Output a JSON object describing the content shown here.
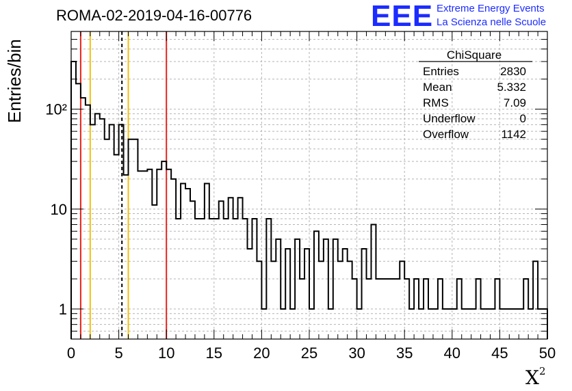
{
  "header": {
    "title": "ROMA-02-2019-04-16-00776",
    "logo_mark": "EEE",
    "logo_line1": "Extreme Energy Events",
    "logo_line2": "La Scienza nelle Scuole"
  },
  "stats_box": {
    "title": "ChiSquare",
    "rows": [
      {
        "label": "Entries",
        "value": "2830"
      },
      {
        "label": "Mean",
        "value": "5.332"
      },
      {
        "label": "RMS",
        "value": "7.09"
      },
      {
        "label": "Underflow",
        "value": "0"
      },
      {
        "label": "Overflow",
        "value": "1142"
      }
    ]
  },
  "colors": {
    "histogram": "#000000",
    "red_line": "#e8221a",
    "yellow_line": "#f2c00d",
    "dashed_line": "#000000",
    "grid": "#b3b3b3",
    "logo": "#1c2bff"
  },
  "chart_data": {
    "type": "bar",
    "title": "ROMA-02-2019-04-16-00776",
    "xlabel": "χ²",
    "ylabel": "Entries/bin",
    "xlim": [
      0,
      50
    ],
    "ylim": [
      0.5,
      600
    ],
    "log_y": true,
    "grid": true,
    "bin_width": 0.5,
    "x_ticks": [
      "0",
      "5",
      "10",
      "15",
      "20",
      "25",
      "30",
      "35",
      "40",
      "45",
      "50"
    ],
    "y_ticks": [
      "1",
      "10",
      "10²"
    ],
    "values": [
      300,
      180,
      130,
      110,
      70,
      90,
      80,
      50,
      70,
      35,
      70,
      22,
      50,
      50,
      24,
      24,
      25,
      11,
      25,
      30,
      25,
      20,
      8,
      18,
      16,
      12,
      8,
      8,
      18,
      8,
      8,
      12,
      8,
      13,
      8,
      13,
      8,
      4,
      8,
      3,
      1,
      8,
      3,
      5,
      1,
      4,
      1,
      5,
      2,
      4,
      1,
      6,
      3,
      5,
      1,
      5,
      3,
      4,
      3,
      2,
      1,
      4,
      2,
      7,
      2,
      2,
      2,
      2,
      2,
      3,
      2,
      1,
      2,
      1,
      2,
      1,
      1,
      2,
      1,
      1,
      1,
      2,
      1,
      1,
      1,
      2,
      1,
      1,
      1,
      2,
      1,
      1,
      1,
      1,
      1,
      2,
      1,
      3,
      1,
      1
    ],
    "vertical_lines": [
      {
        "x": 1,
        "color": "red",
        "style": "solid"
      },
      {
        "x": 2,
        "color": "yellow",
        "style": "solid"
      },
      {
        "x": 5.332,
        "color": "black",
        "style": "dashed"
      },
      {
        "x": 6,
        "color": "yellow",
        "style": "solid"
      },
      {
        "x": 10,
        "color": "red",
        "style": "solid"
      }
    ]
  }
}
